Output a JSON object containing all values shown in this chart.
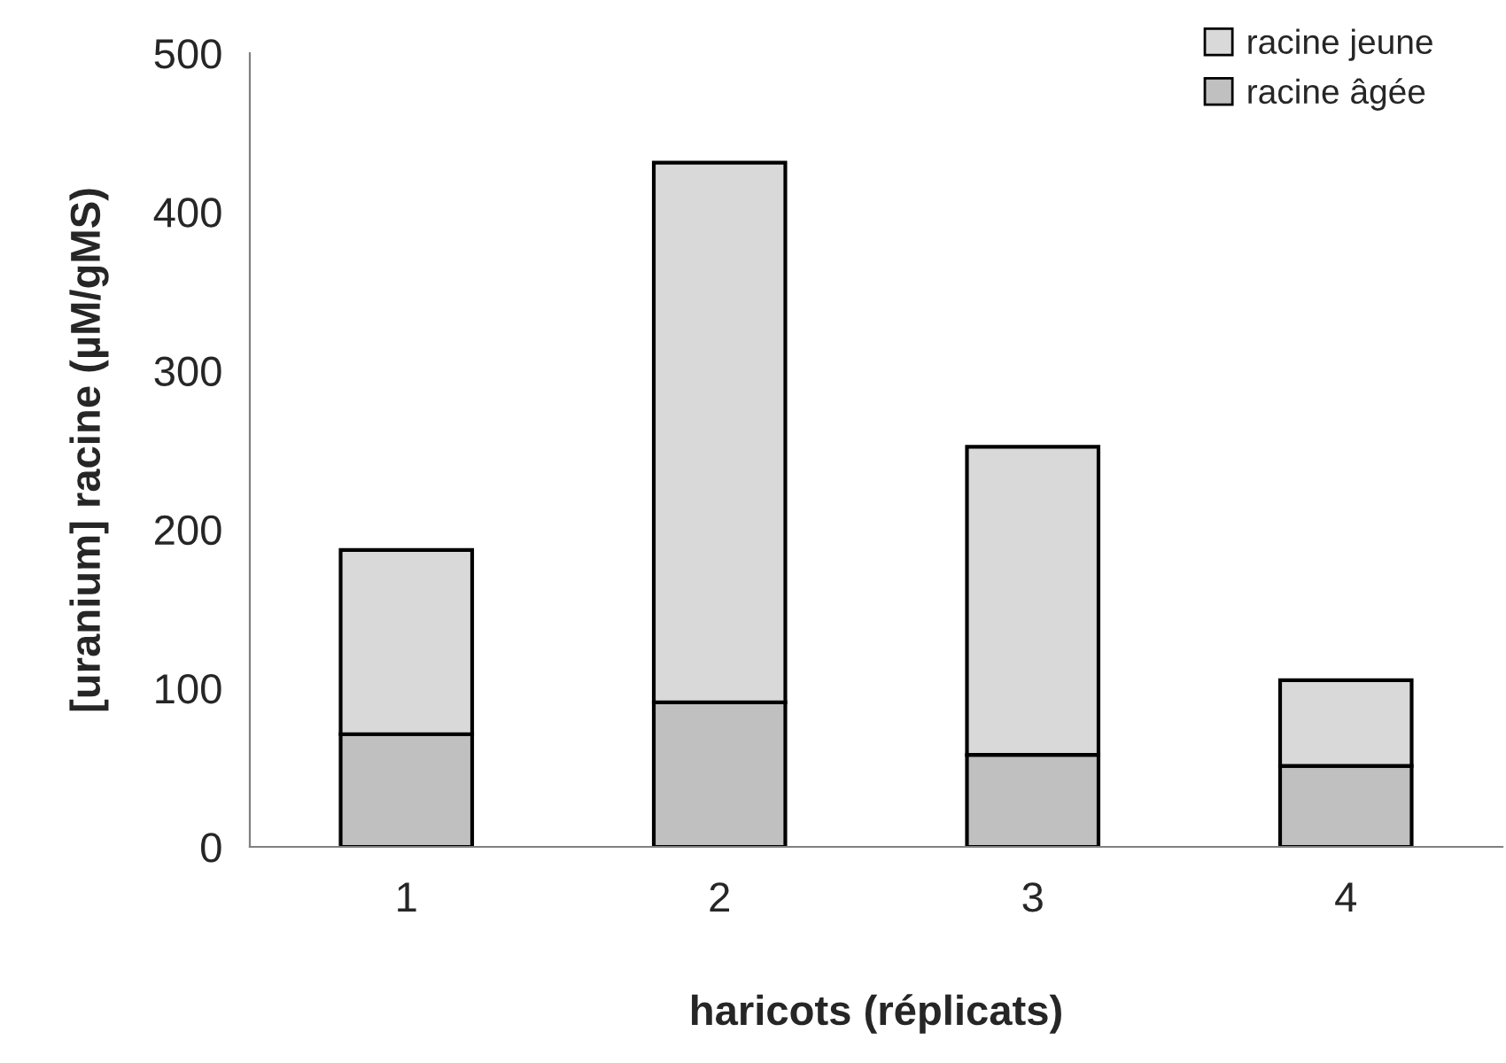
{
  "chart_data": {
    "type": "bar",
    "stacked": true,
    "xlabel": "haricots (réplicats)",
    "ylabel": "[uranium] racine (µM/gMS)",
    "categories": [
      "1",
      "2",
      "3",
      "4"
    ],
    "series": [
      {
        "name": "racine âgée",
        "color": "#c0c0c0",
        "values": [
          71,
          91,
          58,
          51
        ]
      },
      {
        "name": "racine jeune",
        "color": "#d9d9d9",
        "values": [
          116,
          340,
          194,
          54
        ]
      }
    ],
    "ylim": [
      0,
      500
    ],
    "yticks": [
      0,
      100,
      200,
      300,
      400,
      500
    ],
    "grid": false,
    "legend": "top right"
  }
}
